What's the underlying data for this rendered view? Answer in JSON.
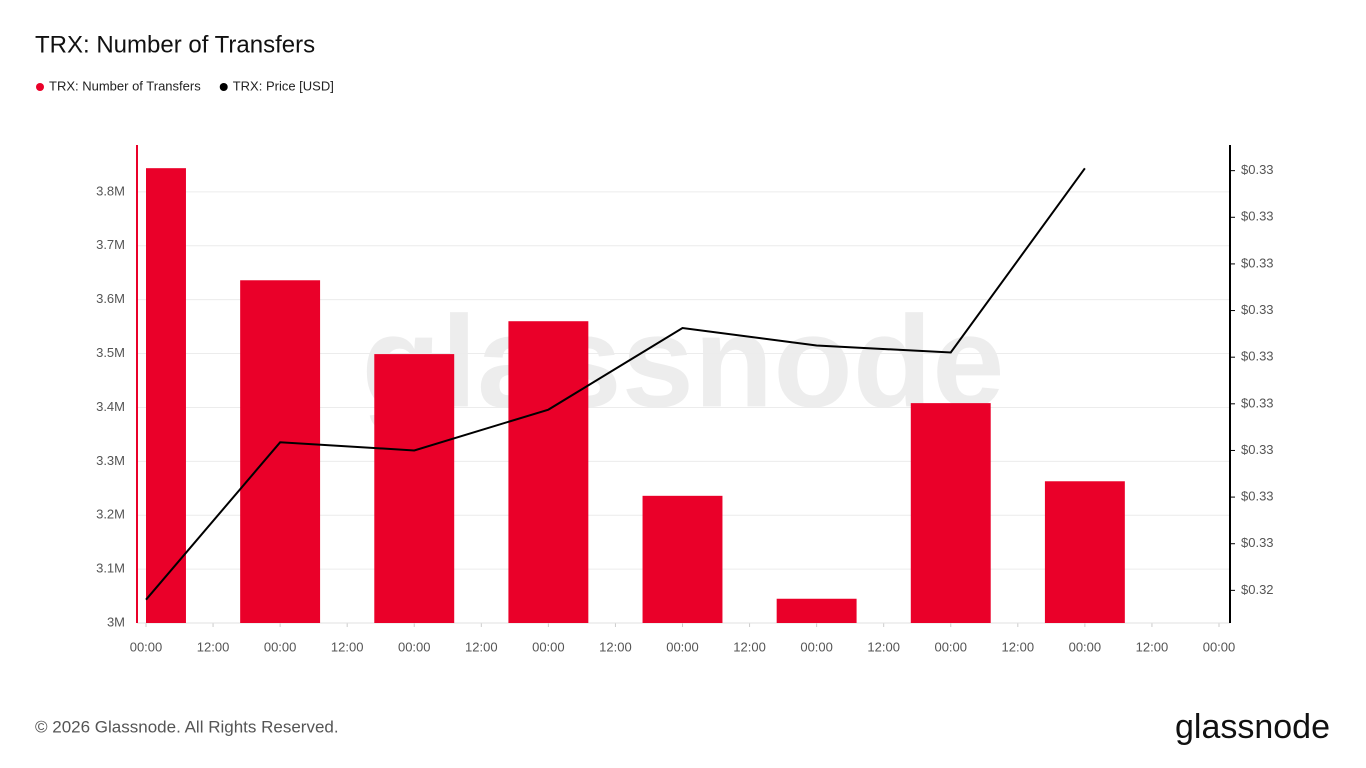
{
  "chart_data": {
    "type": "bar",
    "title": "TRX: Number of Transfers",
    "watermark": "glassnode",
    "footer": "© 2026 Glassnode. All Rights Reserved.",
    "logo": "glassnode",
    "x": [
      0,
      24,
      48,
      72,
      96,
      120,
      144,
      168
    ],
    "xlim": [
      0,
      192
    ],
    "xticks": [
      {
        "value": 0,
        "label": "00:00"
      },
      {
        "value": 12,
        "label": "12:00"
      },
      {
        "value": 24,
        "label": "00:00"
      },
      {
        "value": 36,
        "label": "12:00"
      },
      {
        "value": 48,
        "label": "00:00"
      },
      {
        "value": 60,
        "label": "12:00"
      },
      {
        "value": 72,
        "label": "00:00"
      },
      {
        "value": 84,
        "label": "12:00"
      },
      {
        "value": 96,
        "label": "00:00"
      },
      {
        "value": 108,
        "label": "12:00"
      },
      {
        "value": 120,
        "label": "00:00"
      },
      {
        "value": 132,
        "label": "12:00"
      },
      {
        "value": 144,
        "label": "00:00"
      },
      {
        "value": 156,
        "label": "12:00"
      },
      {
        "value": 168,
        "label": "00:00"
      },
      {
        "value": 180,
        "label": "12:00"
      },
      {
        "value": 192,
        "label": "00:00"
      }
    ],
    "ylim": [
      3000000,
      3887000
    ],
    "yticks": [
      {
        "value": 3000000,
        "label": "3M"
      },
      {
        "value": 3100000,
        "label": "3.1M"
      },
      {
        "value": 3200000,
        "label": "3.2M"
      },
      {
        "value": 3300000,
        "label": "3.3M"
      },
      {
        "value": 3400000,
        "label": "3.4M"
      },
      {
        "value": 3500000,
        "label": "3.5M"
      },
      {
        "value": 3600000,
        "label": "3.6M"
      },
      {
        "value": 3700000,
        "label": "3.7M"
      },
      {
        "value": 3800000,
        "label": "3.8M"
      }
    ],
    "y2lim": [
      0.32452,
      0.32862
    ],
    "y2ticks": [
      {
        "value": 0.3248,
        "label": "$0.32"
      },
      {
        "value": 0.3252,
        "label": "$0.33"
      },
      {
        "value": 0.3256,
        "label": "$0.33"
      },
      {
        "value": 0.326,
        "label": "$0.33"
      },
      {
        "value": 0.3264,
        "label": "$0.33"
      },
      {
        "value": 0.3268,
        "label": "$0.33"
      },
      {
        "value": 0.3272,
        "label": "$0.33"
      },
      {
        "value": 0.3276,
        "label": "$0.33"
      },
      {
        "value": 0.328,
        "label": "$0.33"
      },
      {
        "value": 0.3284,
        "label": "$0.33"
      }
    ],
    "grid": true,
    "series": [
      {
        "name": "TRX: Number of Transfers",
        "type": "bar",
        "color": "#ea0029",
        "values": [
          3844000,
          3636000,
          3499000,
          3560000,
          3236000,
          3045000,
          3408000,
          3263000
        ]
      },
      {
        "name": "TRX: Price [USD]",
        "type": "line",
        "axis": "y2",
        "color": "#000000",
        "values": [
          0.32472,
          0.32607,
          0.326,
          0.32635,
          0.32705,
          0.3269,
          0.32684,
          0.32842
        ]
      }
    ]
  }
}
